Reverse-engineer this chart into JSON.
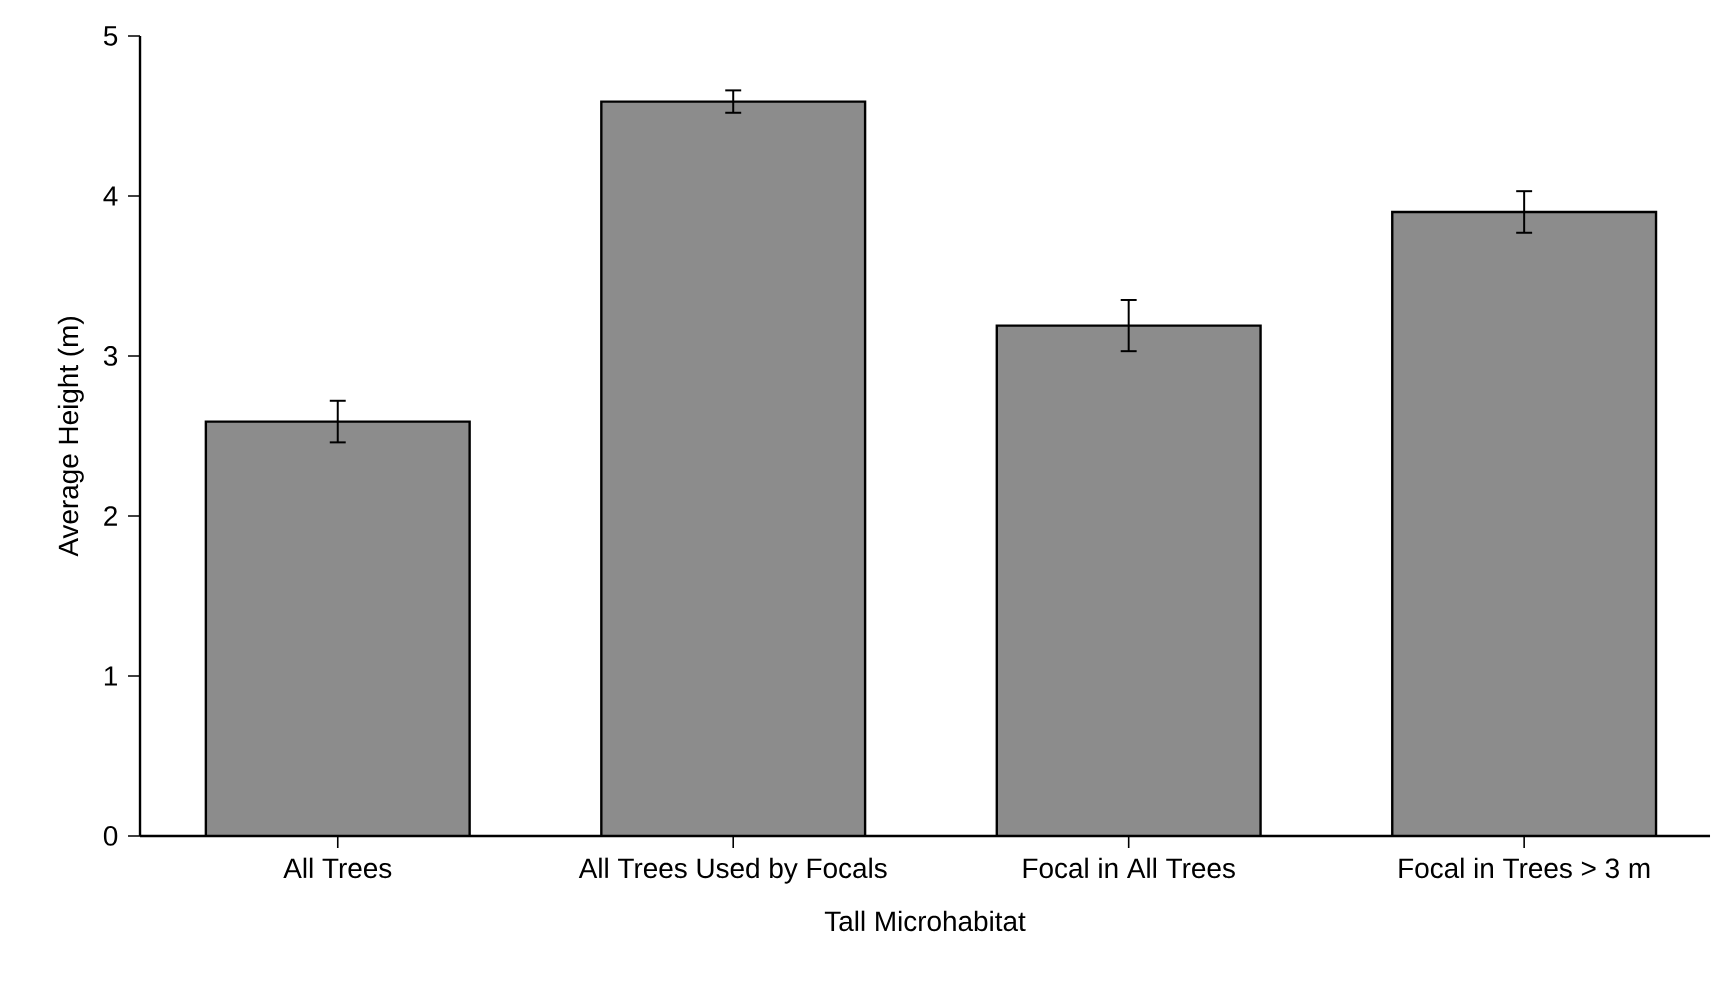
{
  "chart_data": {
    "type": "bar",
    "xlabel": "Tall Microhabitat",
    "ylabel": "Average Height (m)",
    "categories": [
      "All Trees",
      "All Trees Used by Focals",
      "Focal in All Trees",
      "Focal in Trees > 3 m"
    ],
    "values": [
      2.59,
      4.59,
      3.19,
      3.9
    ],
    "errors": [
      0.13,
      0.07,
      0.16,
      0.13
    ],
    "color": "#8c8c8c",
    "ylim": [
      0,
      5
    ],
    "yticks": [
      0,
      1,
      2,
      3,
      4,
      5
    ],
    "grid": false
  }
}
